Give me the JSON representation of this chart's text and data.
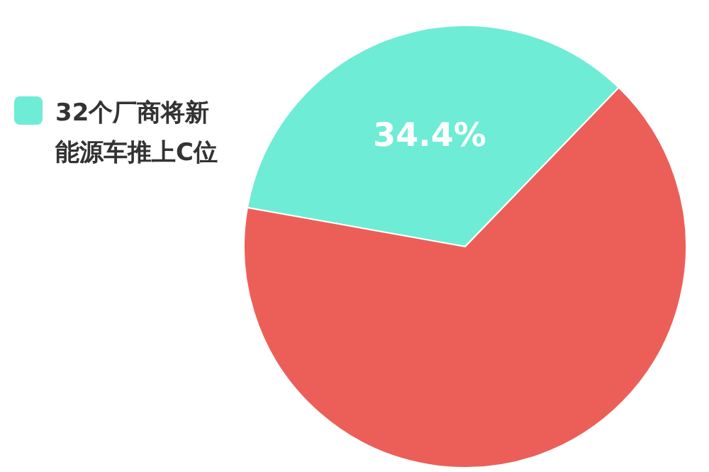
{
  "chart_data": {
    "type": "pie",
    "categories": [
      "32个厂商将新能源车推上C位",
      null
    ],
    "values": [
      34.4,
      65.6
    ],
    "colors": [
      "#6eecd5",
      "#ec5f58"
    ],
    "value_labels": [
      "34.4%",
      null
    ],
    "legend": "left"
  }
}
